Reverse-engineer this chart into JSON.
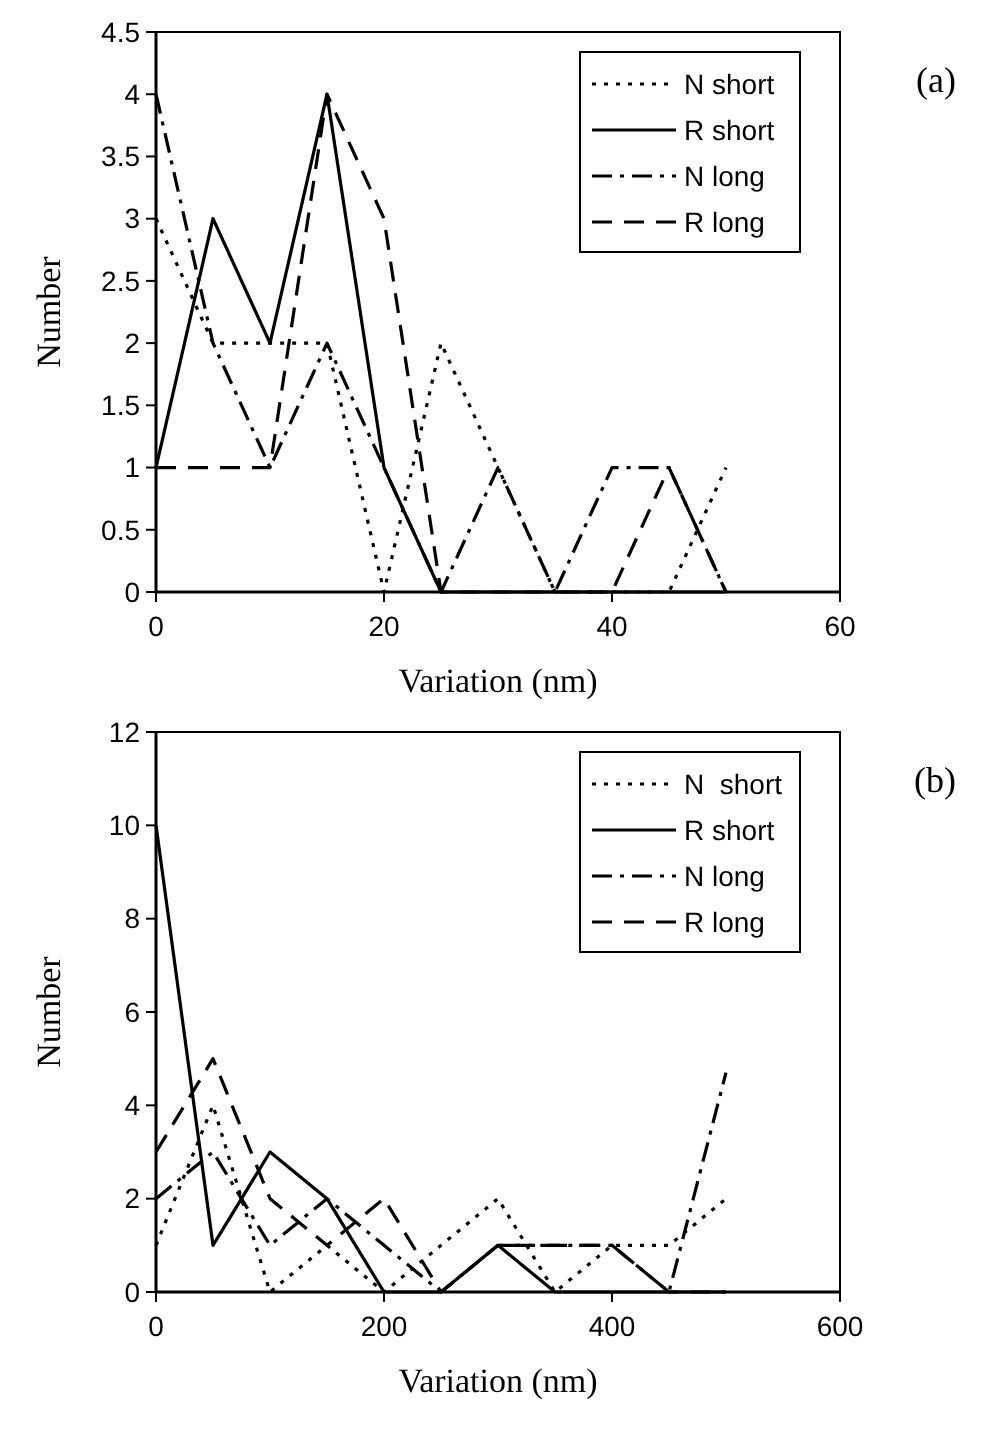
{
  "chart_data": [
    {
      "type": "line",
      "xlabel": "Variation (nm)",
      "ylabel": "Number",
      "annotations": [
        "(a)"
      ],
      "x": [
        0,
        5,
        10,
        15,
        20,
        25,
        30,
        35,
        40,
        45,
        50
      ],
      "xlim": [
        0,
        60
      ],
      "xticks": [
        0,
        20,
        40,
        60
      ],
      "ylim": [
        0,
        4.5
      ],
      "yticks": [
        0,
        0.5,
        1,
        1.5,
        2,
        2.5,
        3,
        3.5,
        4,
        4.5
      ],
      "grid": false,
      "legend": "top right",
      "marker": "none",
      "series": [
        {
          "name": "N short",
          "color": "#000000",
          "line_style": "dotted",
          "values": [
            3,
            2,
            2,
            2,
            0,
            2,
            1,
            0,
            0,
            0,
            1
          ]
        },
        {
          "name": "R short",
          "color": "#000000",
          "line_style": "solid",
          "values": [
            1,
            3,
            2,
            4,
            1,
            0,
            0,
            0,
            0,
            0,
            0
          ]
        },
        {
          "name": "N long",
          "color": "#000000",
          "line_style": "dashdot",
          "values": [
            4,
            2,
            1,
            2,
            1,
            0,
            1,
            0,
            1,
            1,
            0
          ]
        },
        {
          "name": "R long",
          "color": "#000000",
          "line_style": "dashed",
          "values": [
            1,
            1,
            1,
            4,
            3,
            0,
            0,
            0,
            0,
            1,
            0
          ]
        }
      ]
    },
    {
      "type": "line",
      "xlabel": "Variation (nm)",
      "ylabel": "Number",
      "annotations": [
        "(b)"
      ],
      "x": [
        0,
        50,
        100,
        150,
        200,
        250,
        300,
        350,
        400,
        450,
        500
      ],
      "xlim": [
        0,
        600
      ],
      "xticks": [
        0,
        200,
        400,
        600
      ],
      "ylim": [
        0,
        12
      ],
      "yticks": [
        0,
        2,
        4,
        6,
        8,
        10,
        12
      ],
      "grid": false,
      "legend": "top right",
      "marker": "none",
      "series": [
        {
          "name": "N  short",
          "color": "#000000",
          "line_style": "dotted",
          "values": [
            1,
            4,
            0,
            1,
            0,
            1,
            2,
            0,
            1,
            1,
            2
          ]
        },
        {
          "name": "R short",
          "color": "#000000",
          "line_style": "solid",
          "values": [
            10,
            1,
            3,
            2,
            0,
            0,
            1,
            0,
            0,
            0,
            0
          ]
        },
        {
          "name": "N long",
          "color": "#000000",
          "line_style": "dashdot",
          "values": [
            2,
            3,
            1,
            2,
            1,
            0,
            1,
            1,
            1,
            0,
            4.7
          ]
        },
        {
          "name": "R long",
          "color": "#000000",
          "line_style": "dashed",
          "values": [
            3,
            5,
            2,
            1,
            2,
            0,
            1,
            1,
            1,
            0,
            0
          ]
        }
      ]
    }
  ]
}
